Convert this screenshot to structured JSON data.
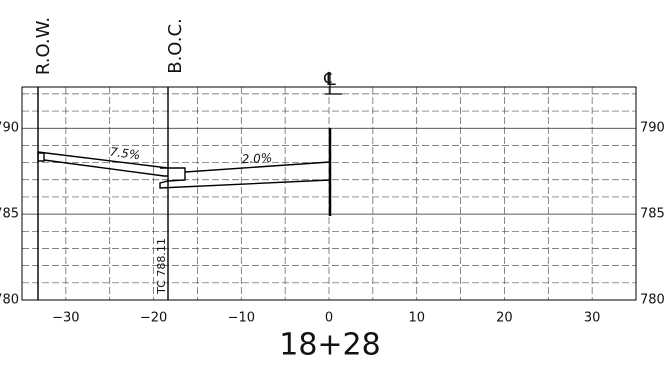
{
  "section": {
    "station": "18+28",
    "labels": {
      "row": "R.O.W.",
      "boc": "B.O.C.",
      "centerline": "℄",
      "slope_left": "7.5%",
      "slope_right": "2.0%",
      "tc": "TC 788.11"
    },
    "xlim": [
      -35,
      35
    ],
    "ylim": [
      780,
      792.4
    ],
    "xticks": [
      {
        "value": -30,
        "label": "−30"
      },
      {
        "value": -20,
        "label": "−20"
      },
      {
        "value": -10,
        "label": "−10"
      },
      0,
      10,
      20,
      30
    ],
    "x_minor_ticks": [
      -35,
      -25,
      -15,
      -5,
      5,
      15,
      25
    ],
    "yticks": [
      780,
      785,
      790
    ],
    "y_minor_ticks": [
      781,
      782,
      783,
      784,
      786,
      787,
      788,
      789,
      791,
      792
    ]
  }
}
